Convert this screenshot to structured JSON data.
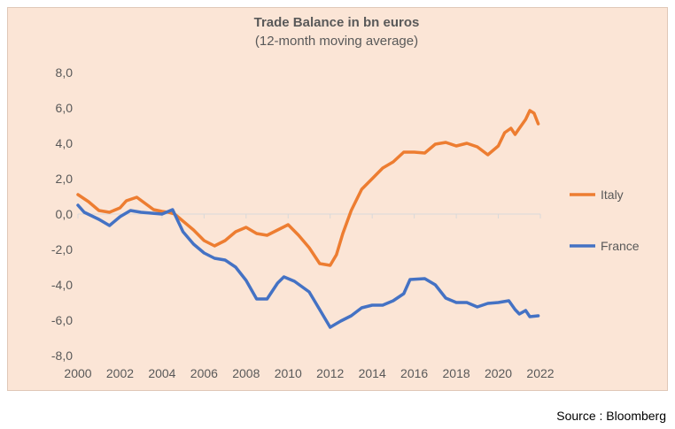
{
  "chart_data": {
    "type": "line",
    "title": "Trade Balance in bn euros",
    "subtitle": "(12-month moving average)",
    "xlabel": "",
    "ylabel": "",
    "xlim": [
      2000,
      2022
    ],
    "ylim": [
      -8,
      8
    ],
    "x_ticks": [
      "2000",
      "2002",
      "2004",
      "2006",
      "2008",
      "2010",
      "2012",
      "2014",
      "2016",
      "2018",
      "2020",
      "2022"
    ],
    "y_ticks": [
      "8,0",
      "6,0",
      "4,0",
      "2,0",
      "0,0",
      "-2,0",
      "-4,0",
      "-6,0",
      "-8,0"
    ],
    "grid": false,
    "legend": "right",
    "series": [
      {
        "name": "Italy",
        "color": "#ed7d31",
        "x": [
          2000,
          2000.5,
          2001,
          2001.5,
          2002,
          2002.3,
          2002.8,
          2003.2,
          2003.6,
          2004,
          2004.3,
          2004.6,
          2005,
          2005.5,
          2006,
          2006.5,
          2007,
          2007.5,
          2008,
          2008.5,
          2009,
          2009.5,
          2010,
          2010.5,
          2011,
          2011.5,
          2012,
          2012.3,
          2012.6,
          2013,
          2013.5,
          2014,
          2014.5,
          2015,
          2015.5,
          2016,
          2016.5,
          2017,
          2017.5,
          2018,
          2018.5,
          2019,
          2019.5,
          2020,
          2020.3,
          2020.6,
          2020.8,
          2021,
          2021.3,
          2021.5,
          2021.7,
          2021.9
        ],
        "values": [
          1.1,
          0.7,
          0.2,
          0.1,
          0.35,
          0.75,
          0.95,
          0.6,
          0.25,
          0.15,
          0.1,
          0,
          -0.4,
          -0.9,
          -1.5,
          -1.8,
          -1.5,
          -1.0,
          -0.75,
          -1.1,
          -1.2,
          -0.9,
          -0.6,
          -1.2,
          -1.9,
          -2.8,
          -2.9,
          -2.3,
          -1.1,
          0.2,
          1.4,
          2.0,
          2.6,
          2.95,
          3.5,
          3.5,
          3.45,
          3.95,
          4.05,
          3.85,
          4.0,
          3.8,
          3.35,
          3.85,
          4.6,
          4.85,
          4.5,
          4.85,
          5.35,
          5.85,
          5.7,
          5.1
        ]
      },
      {
        "name": "France",
        "color": "#4472c4",
        "x": [
          2000,
          2000.3,
          2001,
          2001.5,
          2002,
          2002.5,
          2003,
          2003.5,
          2004,
          2004.5,
          2005,
          2005.5,
          2006,
          2006.5,
          2007,
          2007.5,
          2008,
          2008.5,
          2009,
          2009.5,
          2009.8,
          2010.3,
          2011,
          2011.5,
          2012,
          2012.5,
          2013,
          2013.5,
          2014,
          2014.5,
          2015,
          2015.5,
          2015.8,
          2016.5,
          2017,
          2017.5,
          2018,
          2018.5,
          2019,
          2019.5,
          2020,
          2020.5,
          2020.8,
          2021,
          2021.3,
          2021.5,
          2021.9
        ],
        "values": [
          0.5,
          0.1,
          -0.3,
          -0.65,
          -0.15,
          0.2,
          0.1,
          0.05,
          0,
          0.25,
          -1.0,
          -1.7,
          -2.2,
          -2.5,
          -2.6,
          -3.0,
          -3.75,
          -4.8,
          -4.8,
          -3.9,
          -3.55,
          -3.8,
          -4.4,
          -5.4,
          -6.4,
          -6.05,
          -5.75,
          -5.3,
          -5.15,
          -5.15,
          -4.9,
          -4.5,
          -3.7,
          -3.65,
          -4.0,
          -4.75,
          -5.0,
          -5.0,
          -5.25,
          -5.05,
          -5.0,
          -4.9,
          -5.4,
          -5.65,
          -5.45,
          -5.8,
          -5.75
        ]
      }
    ]
  },
  "source": "Source : Bloomberg",
  "colors": {
    "background": "#fbe5d6",
    "axis": "#d9d9d9",
    "text": "#595959"
  }
}
